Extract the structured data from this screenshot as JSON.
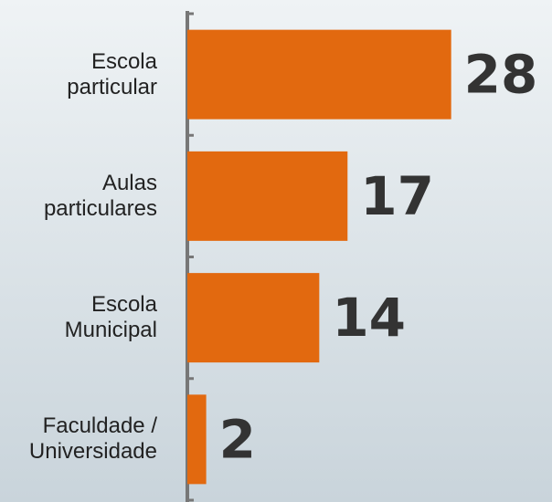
{
  "chart_data": {
    "type": "bar",
    "orientation": "horizontal",
    "categories": [
      "Escola\nparticular",
      "Aulas\nparticulares",
      "Escola\nMunicipal",
      "Faculdade /\nUniversidade"
    ],
    "values": [
      28,
      17,
      14,
      2
    ],
    "color": "#e2690f",
    "xlim": [
      0,
      38.7
    ]
  }
}
